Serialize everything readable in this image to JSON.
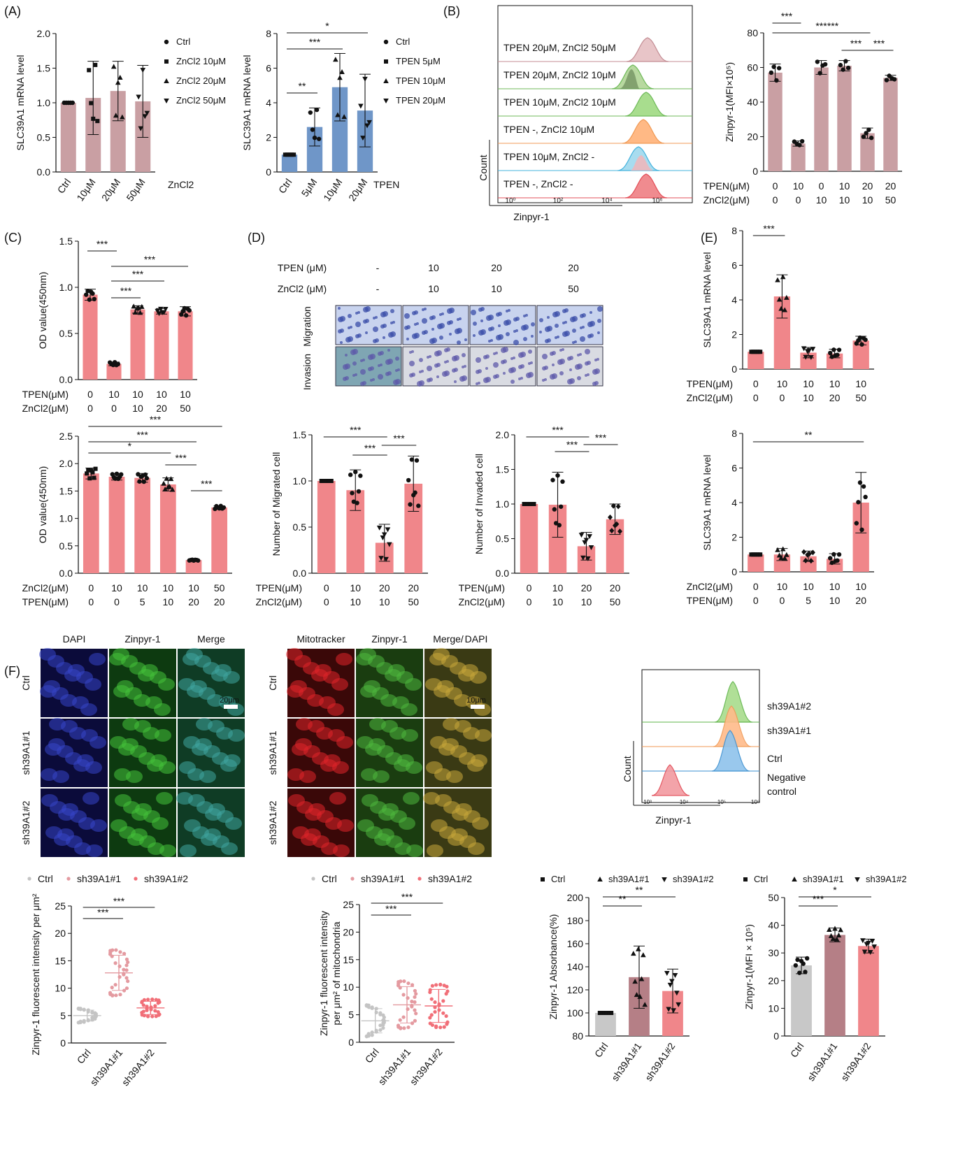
{
  "panels": {
    "A": "(A)",
    "B": "(B)",
    "C": "(C)",
    "D": "(D)",
    "E": "(E)",
    "F": "(F)"
  },
  "colors": {
    "rose": "#c99fa3",
    "blue": "#6f96c8",
    "pink": "#f0868a",
    "grey": "#c8c8c8",
    "midrose": "#b57f86"
  },
  "D_table": {
    "rows": [
      [
        "TPEN  (μM)",
        "-",
        "10",
        "20",
        "20"
      ],
      [
        "ZnCl2  (μM)",
        "-",
        "10",
        "10",
        "50"
      ]
    ],
    "side": [
      "Migration",
      "Invasion"
    ]
  },
  "flow_B": {
    "ylabel": "Count",
    "xlabel": "Zinpyr-1",
    "ticks": [
      "10⁰",
      "10²",
      "10⁴",
      "10⁶"
    ],
    "tracks": [
      "TPEN 20μM, ZnCl2 50μM",
      "TPEN 20μM, ZnCl2 10μM",
      "TPEN 10μM, ZnCl2 10μM",
      "TPEN -, ZnCl2 10μM",
      "TPEN 10μM, ZnCl2 -",
      "TPEN -, ZnCl2 -"
    ]
  },
  "flow_F": {
    "ylabel": "Count",
    "xlabel": "Zinpyr-1",
    "ticks": [
      "10³",
      "10⁴",
      "10⁵",
      "10⁶"
    ],
    "tracks": [
      "sh39A1#2",
      "sh39A1#1",
      "Ctrl",
      "Negative control"
    ]
  },
  "micro_F1": {
    "cols": [
      "DAPI",
      "Zinpyr-1",
      "Merge"
    ],
    "rows": [
      "Ctrl",
      "sh39A1#1",
      "sh39A1#2"
    ],
    "scale": "20μm"
  },
  "micro_F2": {
    "cols": [
      "Mitotracker",
      "Zinpyr-1",
      "Merge/",
      "DAPI"
    ],
    "rows": [
      "Ctrl",
      "sh39A1#1",
      "sh39A1#2"
    ],
    "scale": "10μm"
  },
  "chart_data": [
    {
      "id": "A1",
      "type": "bar",
      "categories": [
        "Ctrl",
        "10μM",
        "20μM",
        "50μM"
      ],
      "values": [
        1.0,
        1.07,
        1.17,
        1.02
      ],
      "errors": [
        0,
        0.53,
        0.43,
        0.52
      ],
      "ylabel": "SLC39A1 mRNA level",
      "xlabel": "ZnCl2",
      "ylim": [
        0,
        2.0
      ],
      "yticks": [
        "0.0",
        "0.5",
        "1.0",
        "1.5",
        "2.0"
      ],
      "legend": [
        "Ctrl",
        "ZnCl2 10μM",
        "ZnCl2 20μM",
        "ZnCl2 50μM"
      ],
      "sig": []
    },
    {
      "id": "A2",
      "type": "bar",
      "categories": [
        "Ctrl",
        "5μM",
        "10μM",
        "20μM"
      ],
      "values": [
        1.0,
        2.6,
        4.9,
        3.55
      ],
      "errors": [
        0,
        1.1,
        1.95,
        2.1
      ],
      "ylabel": "SLC39A1 mRNA level",
      "xlabel": "TPEN",
      "ylim": [
        0,
        8
      ],
      "yticks": [
        "0",
        "2",
        "4",
        "6",
        "8"
      ],
      "legend": [
        "Ctrl",
        "TPEN 5μM",
        "TPEN 10μM",
        "TPEN 20μM"
      ],
      "sig": [
        [
          "**",
          0,
          1
        ],
        [
          "***",
          0,
          2
        ],
        [
          "*",
          0,
          3
        ]
      ]
    },
    {
      "id": "B2",
      "type": "bar",
      "values": [
        57,
        16,
        60,
        61,
        22,
        54
      ],
      "errors": [
        5,
        1.5,
        4,
        3,
        3,
        1.5
      ],
      "ylabel": "Zinpyr-1(MFI×10⁵)",
      "ylim": [
        0,
        80
      ],
      "yticks": [
        "0",
        "20",
        "40",
        "60",
        "80"
      ],
      "rowlabels": [
        "TPEN(μM)",
        "ZnCl2(μM)"
      ],
      "rows": [
        [
          "0",
          "10",
          "0",
          "10",
          "20",
          "20"
        ],
        [
          "0",
          "0",
          "10",
          "10",
          "10",
          "50"
        ]
      ],
      "sig": [
        [
          "***",
          0,
          1
        ],
        [
          "***",
          0,
          4
        ],
        [
          "***",
          1,
          4
        ],
        [
          "***",
          3,
          4
        ],
        [
          "***",
          4,
          5
        ]
      ]
    },
    {
      "id": "C1",
      "type": "bar",
      "values": [
        0.92,
        0.17,
        0.76,
        0.74,
        0.74
      ],
      "errors": [
        0.06,
        0.02,
        0.04,
        0.03,
        0.05
      ],
      "ylabel": "OD value(450nm)",
      "ylim": [
        0,
        1.5
      ],
      "yticks": [
        "0.0",
        "0.5",
        "1.0",
        "1.5"
      ],
      "rowlabels": [
        "TPEN(μM)",
        "ZnCl2(μM)"
      ],
      "rows": [
        [
          "0",
          "10",
          "10",
          "10",
          "10"
        ],
        [
          "0",
          "0",
          "10",
          "20",
          "50"
        ]
      ],
      "sig": [
        [
          "***",
          0,
          1
        ],
        [
          "***",
          1,
          2
        ],
        [
          "***",
          1,
          3
        ],
        [
          "***",
          1,
          4
        ]
      ]
    },
    {
      "id": "C2",
      "type": "bar",
      "values": [
        1.82,
        1.76,
        1.74,
        1.62,
        0.24,
        1.2
      ],
      "errors": [
        0.1,
        0.06,
        0.08,
        0.12,
        0.01,
        0.03
      ],
      "ylabel": "OD value(450nm)",
      "ylim": [
        0,
        2.5
      ],
      "yticks": [
        "0.0",
        "0.5",
        "1.0",
        "1.5",
        "2.0",
        "2.5"
      ],
      "rowlabels": [
        "ZnCl2(μM)",
        "TPEN(μM)"
      ],
      "rows": [
        [
          "0",
          "10",
          "10",
          "10",
          "10",
          "50"
        ],
        [
          "0",
          "0",
          "5",
          "10",
          "20",
          "20"
        ]
      ],
      "sig": [
        [
          "*",
          0,
          3
        ],
        [
          "***",
          3,
          4
        ],
        [
          "***",
          4,
          5
        ],
        [
          "***",
          0,
          4
        ],
        [
          "***",
          0,
          5
        ]
      ]
    },
    {
      "id": "D1",
      "type": "bar",
      "values": [
        1.0,
        0.9,
        0.33,
        0.97
      ],
      "errors": [
        0,
        0.22,
        0.2,
        0.3
      ],
      "ylabel": "Number of Migrated cell",
      "ylim": [
        0,
        1.5
      ],
      "yticks": [
        "0.0",
        "0.5",
        "1.0",
        "1.5"
      ],
      "rowlabels": [
        "TPEN(μM)",
        "ZnCl2(μM)"
      ],
      "rows": [
        [
          "0",
          "10",
          "20",
          "20"
        ],
        [
          "0",
          "10",
          "10",
          "50"
        ]
      ],
      "sig": [
        [
          "***",
          0,
          2
        ],
        [
          "***",
          1,
          2
        ],
        [
          "***",
          2,
          3
        ]
      ]
    },
    {
      "id": "D2",
      "type": "bar",
      "values": [
        1.0,
        0.99,
        0.39,
        0.78
      ],
      "errors": [
        0,
        0.47,
        0.2,
        0.22
      ],
      "ylabel": "Number of Invaded cell",
      "ylim": [
        0,
        2.0
      ],
      "yticks": [
        "0.0",
        "0.5",
        "1.0",
        "1.5",
        "2.0"
      ],
      "rowlabels": [
        "TPEN(μM)",
        "ZnCl2(μM)"
      ],
      "rows": [
        [
          "0",
          "10",
          "20",
          "20"
        ],
        [
          "0",
          "10",
          "10",
          "50"
        ]
      ],
      "sig": [
        [
          "***",
          0,
          2
        ],
        [
          "***",
          1,
          2
        ],
        [
          "***",
          2,
          3
        ]
      ]
    },
    {
      "id": "E1",
      "type": "bar",
      "values": [
        1.0,
        4.2,
        0.95,
        0.9,
        1.65
      ],
      "errors": [
        0,
        1.25,
        0.3,
        0.25,
        0.25
      ],
      "ylabel": "SLC39A1 mRNA level",
      "ylim": [
        0,
        8
      ],
      "yticks": [
        "0",
        "2",
        "4",
        "6",
        "8"
      ],
      "rowlabels": [
        "TPEN(μM)",
        "ZnCl2(μM)"
      ],
      "rows": [
        [
          "0",
          "10",
          "10",
          "10",
          "10"
        ],
        [
          "0",
          "0",
          "10",
          "20",
          "50"
        ]
      ],
      "sig": [
        [
          "***",
          0,
          1
        ]
      ]
    },
    {
      "id": "E2",
      "type": "bar",
      "values": [
        1.0,
        1.0,
        0.9,
        0.75,
        4.0
      ],
      "errors": [
        0,
        0.35,
        0.3,
        0.3,
        1.75
      ],
      "ylabel": "SLC39A1 mRNA level",
      "ylim": [
        0,
        8
      ],
      "yticks": [
        "0",
        "2",
        "4",
        "6",
        "8"
      ],
      "rowlabels": [
        "ZnCl2(μM)",
        "TPEN(μM)"
      ],
      "rows": [
        [
          "0",
          "10",
          "10",
          "10",
          "10"
        ],
        [
          "0",
          "0",
          "5",
          "10",
          "20"
        ]
      ],
      "sig": [
        [
          "**",
          0,
          4
        ]
      ]
    },
    {
      "id": "F1",
      "type": "scatter",
      "categories": [
        "Ctrl",
        "sh39A1#1",
        "sh39A1#2"
      ],
      "means": [
        5.0,
        12.8,
        6.4
      ],
      "sd": [
        1.0,
        3.2,
        1.2
      ],
      "ylabel": "Zinpyr-1 fluorescent intensity per μm²",
      "ylim": [
        0,
        25
      ],
      "yticks": [
        "0",
        "5",
        "10",
        "15",
        "20",
        "25"
      ],
      "legend": [
        "Ctrl",
        "sh39A1#1",
        "sh39A1#2"
      ],
      "sig": [
        [
          "***",
          0,
          1
        ],
        [
          "***",
          0,
          2
        ]
      ]
    },
    {
      "id": "F2",
      "type": "scatter",
      "categories": [
        "Ctrl",
        "sh39A1#1",
        "sh39A1#2"
      ],
      "means": [
        3.9,
        6.8,
        6.6
      ],
      "sd": [
        2.2,
        3.3,
        3.0
      ],
      "ylabel": "Zinpyr-1 fluorescent intensity per μm² of mitochondria",
      "ylim": [
        0,
        25
      ],
      "yticks": [
        "0",
        "5",
        "10",
        "15",
        "20",
        "25"
      ],
      "legend": [
        "Ctrl",
        "sh39A1#1",
        "sh39A1#2"
      ],
      "sig": [
        [
          "***",
          0,
          1
        ],
        [
          "***",
          0,
          2
        ]
      ]
    },
    {
      "id": "F3",
      "type": "bar",
      "categories": [
        "Ctrl",
        "sh39A1#1",
        "sh39A1#2"
      ],
      "values": [
        100,
        131,
        119
      ],
      "errors": [
        0,
        27,
        19
      ],
      "ylabel": "Zinpyr-1 Absorbance(%)",
      "ylim": [
        80,
        200
      ],
      "yticks": [
        "80",
        "100",
        "120",
        "140",
        "160",
        "180",
        "200"
      ],
      "legend": [
        "Ctrl",
        "sh39A1#1",
        "sh39A1#2"
      ],
      "sig": [
        [
          "**",
          0,
          1
        ],
        [
          "**",
          0,
          2
        ]
      ]
    },
    {
      "id": "F4",
      "type": "bar",
      "categories": [
        "Ctrl",
        "sh39A1#1",
        "sh39A1#2"
      ],
      "values": [
        25.5,
        36.5,
        32.5
      ],
      "errors": [
        3,
        2.5,
        2.5
      ],
      "ylabel": "Zinpyr-1(MFI × 10⁵)",
      "ylim": [
        0,
        50
      ],
      "yticks": [
        "0",
        "10",
        "20",
        "30",
        "40",
        "50"
      ],
      "legend": [
        "Ctrl",
        "sh39A1#1",
        "sh39A1#2"
      ],
      "sig": [
        [
          "***",
          0,
          1
        ],
        [
          "*",
          0,
          2
        ]
      ]
    }
  ]
}
